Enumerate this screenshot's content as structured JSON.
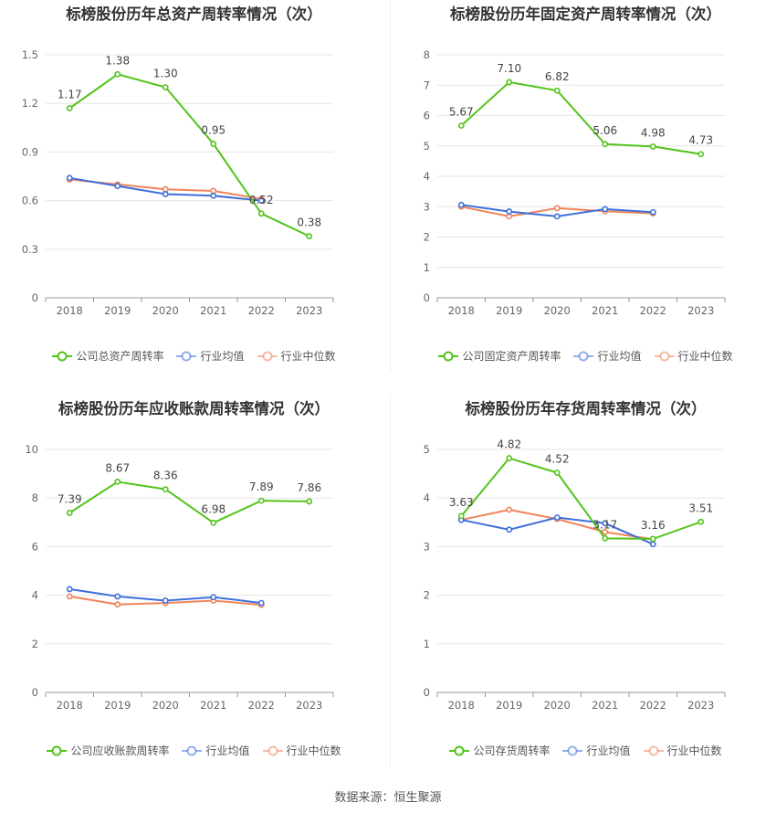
{
  "colors": {
    "company": "#52c41a",
    "avg": "#3d6fdb",
    "median": "#f0845a",
    "grid": "#e6e6e6",
    "axis": "#999999",
    "text": "#666666"
  },
  "footer": "数据来源：恒生聚源",
  "chart_data": [
    {
      "type": "line",
      "title": "标榜股份历年总资产周转率情况（次）",
      "categories": [
        "2018",
        "2019",
        "2020",
        "2021",
        "2022",
        "2023"
      ],
      "ylim": [
        0,
        1.5
      ],
      "yticks": [
        "0",
        "0.3",
        "0.6",
        "0.9",
        "1.2",
        "1.5"
      ],
      "grid": true,
      "legend_position": "bottom",
      "series": [
        {
          "name": "公司总资产周转率",
          "values": [
            1.17,
            1.38,
            1.3,
            0.95,
            0.52,
            0.38
          ],
          "labels": [
            "1.17",
            "1.38",
            "1.30",
            "0.95",
            "0.52",
            "0.38"
          ]
        },
        {
          "name": "行业均值",
          "values": [
            0.74,
            0.69,
            0.64,
            0.63,
            0.6,
            null
          ]
        },
        {
          "name": "行业中位数",
          "values": [
            0.73,
            0.7,
            0.67,
            0.66,
            0.61,
            null
          ]
        }
      ]
    },
    {
      "type": "line",
      "title": "标榜股份历年固定资产周转率情况（次）",
      "categories": [
        "2018",
        "2019",
        "2020",
        "2021",
        "2022",
        "2023"
      ],
      "ylim": [
        0,
        8
      ],
      "yticks": [
        "0",
        "1",
        "2",
        "3",
        "4",
        "5",
        "6",
        "7",
        "8"
      ],
      "grid": true,
      "legend_position": "bottom",
      "series": [
        {
          "name": "公司固定资产周转率",
          "values": [
            5.67,
            7.1,
            6.82,
            5.06,
            4.98,
            4.73
          ],
          "labels": [
            "5.67",
            "7.10",
            "6.82",
            "5.06",
            "4.98",
            "4.73"
          ]
        },
        {
          "name": "行业均值",
          "values": [
            3.06,
            2.84,
            2.68,
            2.92,
            2.82,
            null
          ]
        },
        {
          "name": "行业中位数",
          "values": [
            3.0,
            2.68,
            2.95,
            2.85,
            2.78,
            null
          ]
        }
      ]
    },
    {
      "type": "line",
      "title": "标榜股份历年应收账款周转率情况（次）",
      "categories": [
        "2018",
        "2019",
        "2020",
        "2021",
        "2022",
        "2023"
      ],
      "ylim": [
        0,
        10
      ],
      "yticks": [
        "0",
        "2",
        "4",
        "6",
        "8",
        "10"
      ],
      "grid": true,
      "legend_position": "bottom",
      "series": [
        {
          "name": "公司应收账款周转率",
          "values": [
            7.39,
            8.67,
            8.36,
            6.98,
            7.89,
            7.86
          ],
          "labels": [
            "7.39",
            "8.67",
            "8.36",
            "6.98",
            "7.89",
            "7.86"
          ]
        },
        {
          "name": "行业均值",
          "values": [
            4.25,
            3.95,
            3.78,
            3.92,
            3.68,
            null
          ]
        },
        {
          "name": "行业中位数",
          "values": [
            3.95,
            3.62,
            3.68,
            3.78,
            3.6,
            null
          ]
        }
      ]
    },
    {
      "type": "line",
      "title": "标榜股份历年存货周转率情况（次）",
      "categories": [
        "2018",
        "2019",
        "2020",
        "2021",
        "2022",
        "2023"
      ],
      "ylim": [
        0,
        5
      ],
      "yticks": [
        "0",
        "1",
        "2",
        "3",
        "4",
        "5"
      ],
      "grid": true,
      "legend_position": "bottom",
      "series": [
        {
          "name": "公司存货周转率",
          "values": [
            3.63,
            4.82,
            4.52,
            3.17,
            3.16,
            3.51
          ],
          "labels": [
            "3.63",
            "4.82",
            "4.52",
            "3.17",
            "3.16",
            "3.51"
          ]
        },
        {
          "name": "行业均值",
          "values": [
            3.55,
            3.35,
            3.6,
            3.48,
            3.05,
            null
          ]
        },
        {
          "name": "行业中位数",
          "values": [
            3.55,
            3.76,
            3.57,
            3.3,
            3.15,
            null
          ]
        }
      ]
    }
  ]
}
